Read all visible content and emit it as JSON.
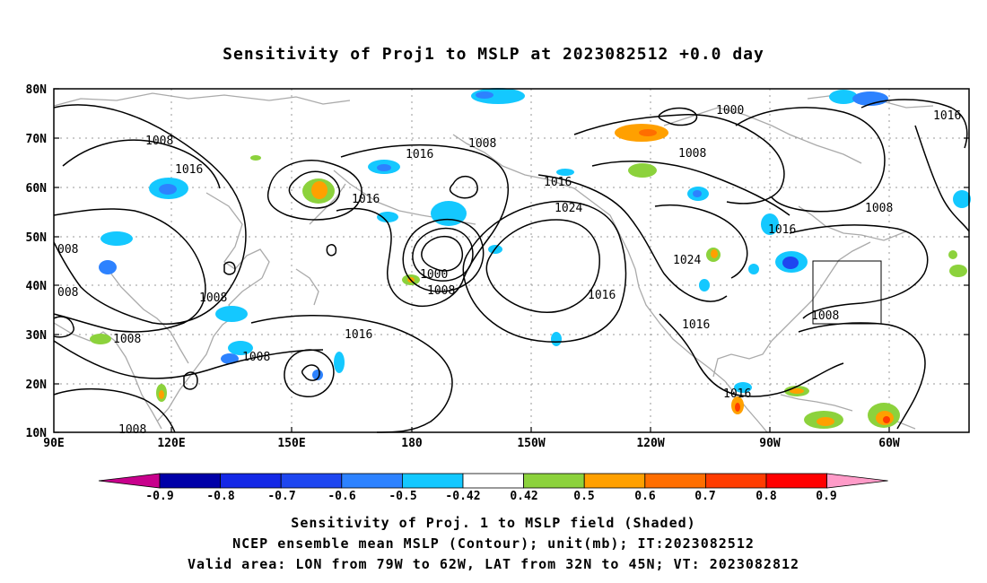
{
  "title": "Sensitivity of Proj1 to MSLP at 2023082512 +0.0 day",
  "lat_labels": [
    "80N",
    "70N",
    "60N",
    "50N",
    "40N",
    "30N",
    "20N",
    "10N"
  ],
  "lon_labels": [
    "90E",
    "120E",
    "150E",
    "180",
    "150W",
    "120W",
    "90W",
    "60W"
  ],
  "contour_labels": [
    "1008",
    "1016",
    "1008",
    "1016",
    "1016",
    "1016",
    "1008",
    "1016",
    "1024",
    "1000",
    "1008",
    "1016",
    "1000",
    "1008",
    "1024",
    "1016",
    "1016",
    "1016",
    "1008",
    "1008",
    "008",
    "008",
    "1008",
    "1008",
    "1016",
    "1008"
  ],
  "colorbar": {
    "labels": [
      "-0.9",
      "-0.8",
      "-0.7",
      "-0.6",
      "-0.5",
      "-0.42",
      "0.42",
      "0.5",
      "0.6",
      "0.7",
      "0.8",
      "0.9"
    ],
    "colors": [
      "#c8008c",
      "#0000a8",
      "#1428e6",
      "#1e46f0",
      "#2d82ff",
      "#14c8ff",
      "#ffffff",
      "#8cd23c",
      "#ffa000",
      "#ff6e00",
      "#ff3c00",
      "#ff0000",
      "#ff9bc8"
    ]
  },
  "valid_box": {
    "lon_west": -79,
    "lon_east": -62,
    "lat_south": 32,
    "lat_north": 45
  },
  "captions": [
    "Sensitivity of Proj. 1 to MSLP field (Shaded)",
    "NCEP ensemble mean MSLP (Contour); unit(mb); IT:2023082512",
    "Valid area: LON from 79W to 62W, LAT from 32N to 45N; VT: 2023082812"
  ]
}
